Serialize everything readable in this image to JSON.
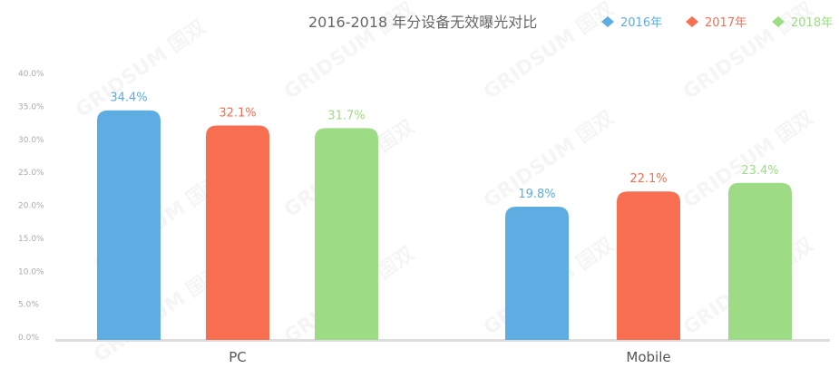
{
  "chart_data": {
    "type": "bar",
    "title": "2016-2018 年分设备无效曝光对比",
    "categories": [
      "PC",
      "Mobile"
    ],
    "series": [
      {
        "name": "2016年",
        "values": [
          34.4,
          19.8
        ],
        "color": "#5DADE2"
      },
      {
        "name": "2017年",
        "values": [
          32.1,
          22.1
        ],
        "color": "#F76E50"
      },
      {
        "name": "2018年",
        "values": [
          31.7,
          23.4
        ],
        "color": "#9DDC85"
      }
    ],
    "data_labels": [
      [
        "34.4%",
        "19.8%"
      ],
      [
        "32.1%",
        "22.1%"
      ],
      [
        "31.7%",
        "23.4%"
      ]
    ],
    "ylim": [
      0,
      40
    ],
    "yticks": [
      "0.0%",
      "5.0%",
      "10.0%",
      "15.0%",
      "20.0%",
      "25.0%",
      "30.0%",
      "35.0%",
      "40.0%"
    ],
    "xlabel": "",
    "ylabel": "",
    "grid": false,
    "legend_position": "top-right",
    "legend_marker": "diamond"
  },
  "watermark": "GRIDSUM 国双"
}
